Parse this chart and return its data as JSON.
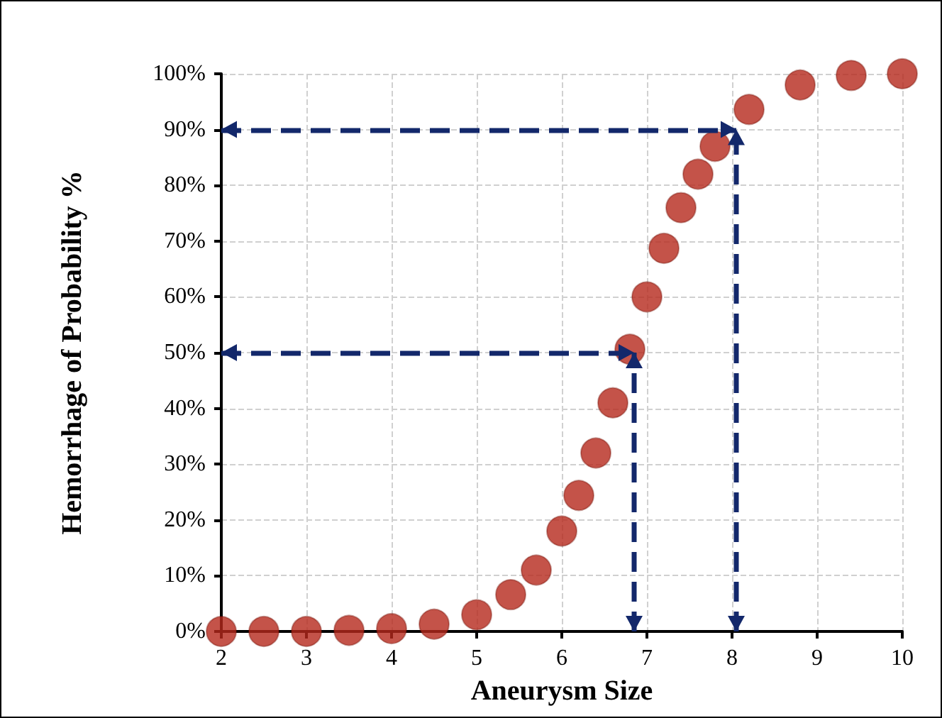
{
  "chart_data": {
    "type": "scatter",
    "xlabel": "Aneurysm Size",
    "ylabel": "Hemorrhage of Probability %",
    "x": [
      2,
      2.5,
      3,
      3.5,
      4,
      4.5,
      5,
      5.4,
      5.7,
      6,
      6.2,
      6.4,
      6.6,
      6.8,
      7,
      7.2,
      7.4,
      7.6,
      7.8,
      8.2,
      8.8,
      9.4,
      10
    ],
    "series": [
      {
        "color": "#b5281c",
        "values": [
          0,
          0,
          0,
          0.2,
          0.5,
          1.3,
          3,
          6.6,
          11,
          18,
          24.4,
          32,
          41,
          50.6,
          60,
          68.7,
          76,
          82,
          87,
          93.6,
          98,
          99.7,
          100
        ]
      }
    ],
    "xlim": [
      2,
      10
    ],
    "xticks": [
      2,
      3,
      4,
      5,
      6,
      7,
      8,
      9,
      10
    ],
    "ylim": [
      0,
      100
    ],
    "yticks": [
      {
        "value": 0,
        "label": "0%"
      },
      {
        "value": 10,
        "label": "10%"
      },
      {
        "value": 20,
        "label": "20%"
      },
      {
        "value": 30,
        "label": "30%"
      },
      {
        "value": 40,
        "label": "40%"
      },
      {
        "value": 50,
        "label": "50%"
      },
      {
        "value": 60,
        "label": "60%"
      },
      {
        "value": 70,
        "label": "70%"
      },
      {
        "value": 80,
        "label": "80%"
      },
      {
        "value": 90,
        "label": "90%"
      },
      {
        "value": 100,
        "label": "100%"
      }
    ],
    "ref_lines": [
      {
        "axis": "y",
        "value": 90,
        "color": "#13286b",
        "line_style": "dashed"
      },
      {
        "axis": "y",
        "value": 50,
        "color": "#13286b",
        "line_style": "dashed"
      },
      {
        "axis": "x",
        "value": 8.05,
        "color": "#13286b",
        "line_style": "dashed"
      },
      {
        "axis": "x",
        "value": 6.85,
        "color": "#13286b",
        "line_style": "dashed"
      }
    ],
    "grid": true,
    "marker": "circle",
    "legend": false
  }
}
